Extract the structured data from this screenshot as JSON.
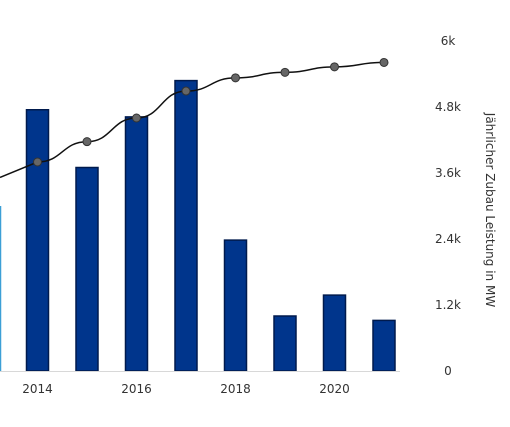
{
  "chart_data": {
    "type": "bar",
    "x": [
      2013,
      2014,
      2015,
      2016,
      2017,
      2018,
      2019,
      2020,
      2021
    ],
    "series": [
      {
        "kind": "bar",
        "axis": "right",
        "values": [
          3000,
          4750,
          3700,
          4620,
          5280,
          2380,
          1000,
          1380,
          920
        ]
      },
      {
        "kind": "line",
        "values": [
          null,
          3800,
          4170,
          4600,
          5090,
          5330,
          5430,
          5530,
          5610
        ]
      }
    ],
    "y_right": {
      "label": "Jährlicher Zubau Leistung in MW",
      "ylim": [
        0,
        6000
      ],
      "ticks": [
        "0",
        "1.2k",
        "2.4k",
        "3.6k",
        "4.8k",
        "6k"
      ]
    },
    "x_ticks": [
      "2014",
      "2016",
      "2018",
      "2020"
    ],
    "colors": {
      "bar_fill": "#00358C",
      "bar_stroke": "#001A4D",
      "partial_bar_edge": "#3C9FD6",
      "line": "#111111",
      "marker": "#666666"
    },
    "grid": false
  }
}
